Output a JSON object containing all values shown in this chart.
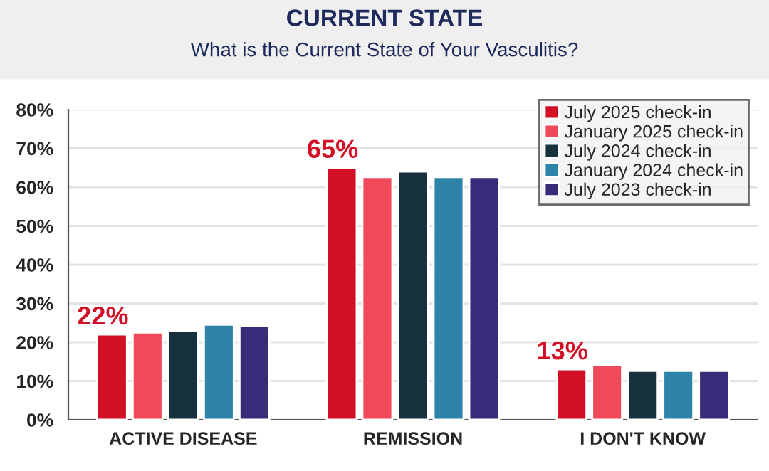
{
  "chart_data": {
    "type": "bar",
    "title": "CURRENT STATE",
    "subtitle": "What is the Current State of Your Vasculitis?",
    "categories": [
      "ACTIVE DISEASE",
      "REMISSION",
      "I DON'T KNOW"
    ],
    "series": [
      {
        "name": "July 2025 check-in",
        "color": "#d20f24",
        "values": [
          22,
          65,
          13
        ],
        "value_labels": [
          "22%",
          "65%",
          "13%"
        ]
      },
      {
        "name": "January 2025 check-in",
        "color": "#f04a5a",
        "values": [
          22.5,
          62.6,
          14.2
        ]
      },
      {
        "name": "July 2024 check-in",
        "color": "#17313f",
        "values": [
          23.0,
          64.0,
          12.6
        ]
      },
      {
        "name": "January 2024 check-in",
        "color": "#2e84a8",
        "values": [
          24.5,
          62.6,
          12.6
        ]
      },
      {
        "name": "July 2023 check-in",
        "color": "#3a2a7a",
        "values": [
          24.2,
          62.6,
          12.6
        ]
      }
    ],
    "ylim": [
      0,
      80
    ],
    "yticks": [
      {
        "value": 0,
        "label": "0%"
      },
      {
        "value": 10,
        "label": "10%"
      },
      {
        "value": 20,
        "label": "20%"
      },
      {
        "value": 30,
        "label": "30%"
      },
      {
        "value": 40,
        "label": "40%"
      },
      {
        "value": 50,
        "label": "50%"
      },
      {
        "value": 60,
        "label": "60%"
      },
      {
        "value": 70,
        "label": "70%"
      },
      {
        "value": 80,
        "label": "80%"
      }
    ],
    "grid": "y",
    "legend": "top right"
  }
}
